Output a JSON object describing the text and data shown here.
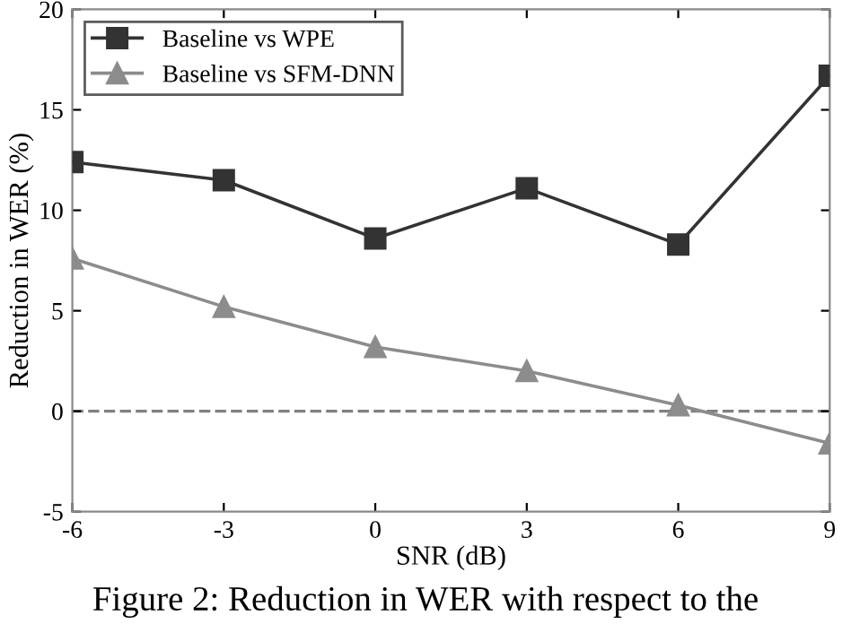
{
  "chart_data": {
    "type": "line",
    "xlabel": "SNR (dB)",
    "ylabel": "Reduction in WER (%)",
    "x": [
      -6,
      -3,
      0,
      3,
      6,
      9
    ],
    "series": [
      {
        "name": "Baseline vs WPE",
        "color": "#333333",
        "marker": "square",
        "values": [
          12.4,
          11.5,
          8.6,
          11.1,
          8.3,
          16.7
        ]
      },
      {
        "name": "Baseline vs SFM-DNN",
        "color": "#8c8c8c",
        "marker": "triangle",
        "values": [
          7.6,
          5.2,
          3.2,
          2.0,
          0.3,
          -1.6
        ]
      }
    ],
    "xlim": [
      -6,
      9
    ],
    "xticks": [
      -6,
      -3,
      0,
      3,
      6,
      9
    ],
    "ylim": [
      -5,
      20
    ],
    "yticks": [
      -5,
      0,
      5,
      10,
      15,
      20
    ],
    "ref_lines": [
      {
        "axis": "y",
        "value": 0,
        "color": "#808080",
        "line_style": "dashed"
      }
    ],
    "grid": false,
    "legend": "top left",
    "line_style": "solid",
    "annotations": [
      "Figure 2: Reduction in WER with respect to the"
    ]
  }
}
